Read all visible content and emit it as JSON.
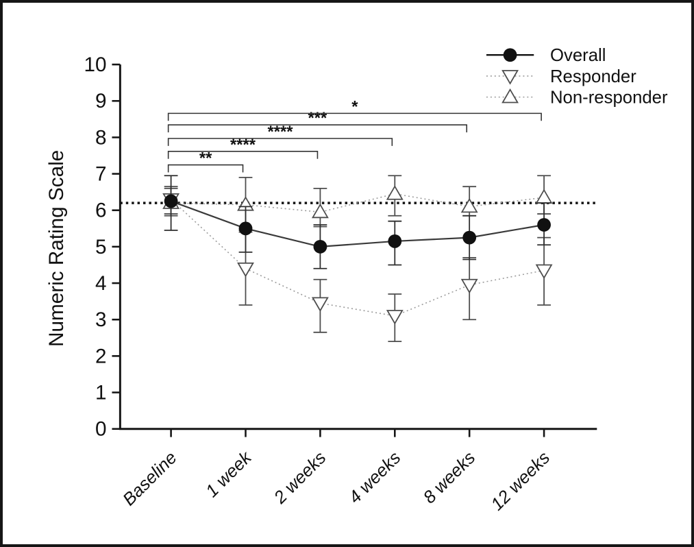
{
  "page": {
    "background_color": "#ffffff",
    "border_color": "#161616"
  },
  "chart_data": {
    "type": "line",
    "title": "",
    "xlabel": "",
    "ylabel": "Numeric Rating Scale",
    "ylim": [
      0,
      10
    ],
    "yticks": [
      0,
      1,
      2,
      3,
      4,
      5,
      6,
      7,
      8,
      9,
      10
    ],
    "grid": false,
    "legend_position": "top-right",
    "categories": [
      "Baseline",
      "1 week",
      "2 weeks",
      "4 weeks",
      "8 weeks",
      "12 weeks"
    ],
    "reference_line": {
      "value": 6.2,
      "style": "dotted",
      "color": "#111111"
    },
    "series": [
      {
        "name": "Non-responder",
        "marker": "open-triangle-up",
        "line_style": "dotted",
        "line_color": "#9b9b9b",
        "marker_color": "#4d4d4d",
        "error_color": "#4d4d4d",
        "values": [
          6.2,
          6.15,
          5.95,
          6.45,
          6.1,
          6.35
        ],
        "err_low": [
          5.85,
          5.45,
          5.55,
          5.85,
          5.85,
          5.9
        ],
        "err_high": [
          6.6,
          6.9,
          6.6,
          6.95,
          6.65,
          6.95
        ]
      },
      {
        "name": "Responder",
        "marker": "open-triangle-down",
        "line_style": "dotted",
        "line_color": "#9b9b9b",
        "marker_color": "#4d4d4d",
        "error_color": "#4d4d4d",
        "values": [
          6.3,
          4.4,
          3.45,
          3.1,
          3.95,
          4.35
        ],
        "err_low": [
          5.9,
          3.4,
          2.65,
          2.4,
          3.0,
          3.4
        ],
        "err_high": [
          6.65,
          5.4,
          4.1,
          3.7,
          4.7,
          5.25
        ]
      },
      {
        "name": "Overall",
        "marker": "filled-circle",
        "line_style": "solid",
        "line_color": "#3a3a3a",
        "marker_color": "#111111",
        "error_color": "#2e2e2e",
        "values": [
          6.25,
          5.5,
          5.0,
          5.15,
          5.25,
          5.6
        ],
        "err_low": [
          5.45,
          4.85,
          4.4,
          4.5,
          4.65,
          5.05
        ],
        "err_high": [
          6.95,
          6.1,
          5.6,
          5.7,
          5.85,
          6.2
        ]
      }
    ],
    "legend_order": [
      "Overall",
      "Responder",
      "Non-responder"
    ],
    "significance_brackets": [
      {
        "from": "Baseline",
        "to": "1 week",
        "label": "**"
      },
      {
        "from": "Baseline",
        "to": "2 weeks",
        "label": "****"
      },
      {
        "from": "Baseline",
        "to": "4 weeks",
        "label": "****"
      },
      {
        "from": "Baseline",
        "to": "8 weeks",
        "label": "***"
      },
      {
        "from": "Baseline",
        "to": "12 weeks",
        "label": "*"
      }
    ]
  }
}
